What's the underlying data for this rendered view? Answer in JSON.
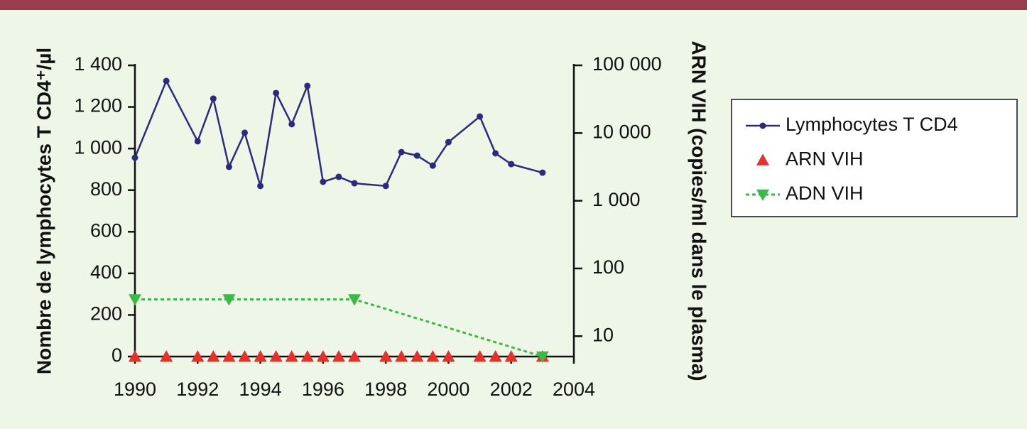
{
  "chart_data": {
    "type": "line",
    "xlim": [
      1990,
      2004
    ],
    "xticks": [
      1990,
      1992,
      1994,
      1996,
      1998,
      2000,
      2002,
      2004
    ],
    "ylim": [
      0,
      1400
    ],
    "yticks": [
      0,
      200,
      400,
      600,
      800,
      {
        "value": 1000,
        "label": "1 000"
      },
      {
        "value": 1200,
        "label": "1 200"
      },
      {
        "value": 1400,
        "label": "1 400"
      }
    ],
    "y2lim": [
      5,
      100000
    ],
    "y2_log": true,
    "y2ticks": [
      10,
      100,
      {
        "value": 1000,
        "label": "1 000"
      },
      {
        "value": 10000,
        "label": "10 000"
      },
      {
        "value": 100000,
        "label": "100 000"
      }
    ],
    "y_label": "Nombre de lymphocytes T CD4⁺/µl",
    "y2_label": "ARN VIH (copies/ml dans le plasma)",
    "legend": "right",
    "series": [
      {
        "name": "Lymphocytes T CD4",
        "color": "#2b2b7e",
        "marker": "circle",
        "line": "solid",
        "x": [
          1990,
          1991,
          1992,
          1992.5,
          1993,
          1993.5,
          1994,
          1994.5,
          1995,
          1995.5,
          1996,
          1996.5,
          1997,
          1998,
          1998.5,
          1999,
          1999.5,
          2000,
          2001,
          2001.5,
          2002,
          2003
        ],
        "values": [
          956,
          1325,
          1035,
          1240,
          912,
          1076,
          820,
          1267,
          1117,
          1301,
          840,
          864,
          833,
          820,
          983,
          966,
          918,
          1031,
          1154,
          977,
          925,
          884
        ]
      },
      {
        "name": "ARN VIH",
        "color": "#e8302a",
        "marker": "triangle-up",
        "line": "none",
        "axis": "y2",
        "x": [
          1990,
          1991,
          1992,
          1992.5,
          1993,
          1993.5,
          1994,
          1994.5,
          1995,
          1995.5,
          1996,
          1996.5,
          1997,
          1998,
          1998.5,
          1999,
          1999.5,
          2000,
          2001,
          2001.5,
          2002,
          2003
        ],
        "values": [
          5,
          5,
          5,
          5,
          5,
          5,
          5,
          5,
          5,
          5,
          5,
          5,
          5,
          5,
          5,
          5,
          5,
          5,
          5,
          5,
          5,
          5
        ]
      },
      {
        "name": "ADN VIH",
        "color": "#3cba48",
        "marker": "triangle-down",
        "line": "dashed",
        "axis": "y2",
        "x": [
          1990,
          1993,
          1997,
          2003
        ],
        "values": [
          35,
          35,
          35,
          5
        ]
      }
    ]
  }
}
